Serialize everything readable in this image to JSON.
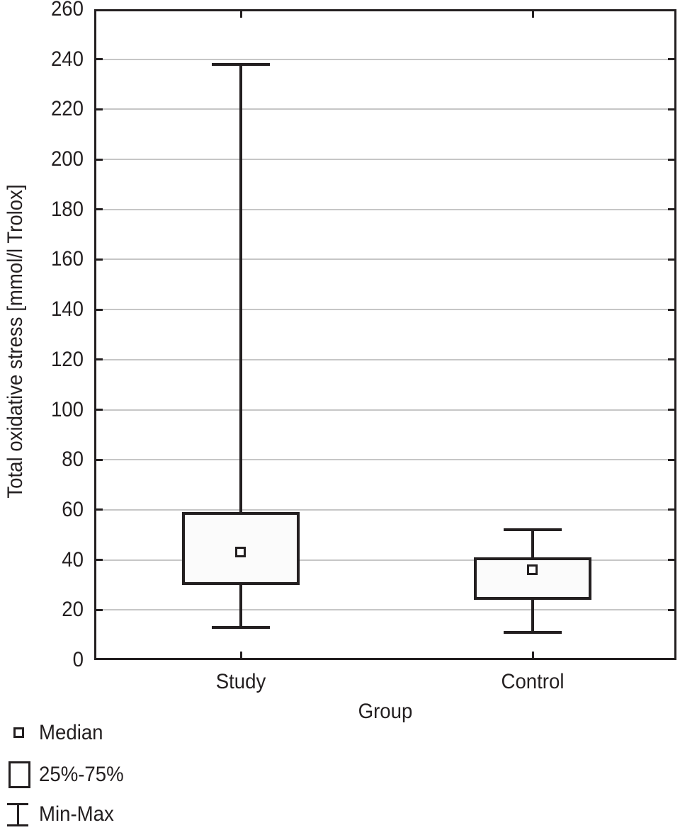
{
  "chart_data": {
    "type": "box",
    "title": "",
    "xlabel": "Group",
    "ylabel": "Total oxidative stress [mmol/l Trolox]",
    "ylim": [
      0,
      260
    ],
    "ytick_step": 20,
    "grid": "horizontal",
    "legend_position": "bottom-left",
    "categories": [
      "Study",
      "Control"
    ],
    "series": [
      {
        "name": "Study",
        "min": 13,
        "q1": 30,
        "median": 43,
        "q3": 59,
        "max": 238
      },
      {
        "name": "Control",
        "min": 11,
        "q1": 24,
        "median": 36,
        "q3": 41,
        "max": 52
      }
    ],
    "legend": [
      {
        "marker": "median-square",
        "label": "Median"
      },
      {
        "marker": "iqr-box",
        "label": "25%-75%"
      },
      {
        "marker": "min-max-whisker",
        "label": "Min-Max"
      }
    ]
  },
  "colors": {
    "line": "#231f20",
    "grid": "#c6c6c6",
    "box_fill": "#fbfbfb",
    "background": "#ffffff"
  }
}
